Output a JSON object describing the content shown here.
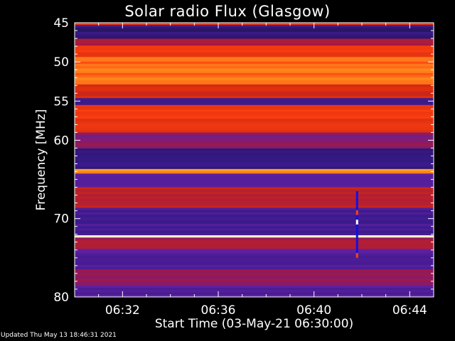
{
  "title": "Solar radio Flux (Glasgow)",
  "footer": "Updated Thu May 13 18:46:31 2021",
  "chart_data": {
    "type": "heatmap",
    "title": "Solar radio Flux (Glasgow)",
    "xlabel": "Start Time (03-May-21 06:30:00)",
    "ylabel": "Frequency [MHz]",
    "x_range_minutes": [
      0,
      15
    ],
    "y_range_mhz": [
      45,
      80
    ],
    "x_ticks": [
      {
        "label": "06:32",
        "minutes": 2
      },
      {
        "label": "06:36",
        "minutes": 6
      },
      {
        "label": "06:40",
        "minutes": 10
      },
      {
        "label": "06:44",
        "minutes": 14
      }
    ],
    "y_ticks": [
      45,
      50,
      55,
      60,
      70,
      80
    ],
    "colormap": [
      "#000000",
      "#10102a",
      "#3a1a8c",
      "#6020a0",
      "#a01848",
      "#d42a10",
      "#ff4010",
      "#ff9a20",
      "#ffe070",
      "#ffffff"
    ],
    "frequency_bands": [
      {
        "from": 45.0,
        "to": 45.4,
        "intensity": 0.65
      },
      {
        "from": 45.4,
        "to": 47.0,
        "intensity": 0.2
      },
      {
        "from": 47.0,
        "to": 48.0,
        "intensity": 0.45
      },
      {
        "from": 48.0,
        "to": 49.5,
        "intensity": 0.62
      },
      {
        "from": 49.5,
        "to": 53.0,
        "intensity": 0.72
      },
      {
        "from": 53.0,
        "to": 54.5,
        "intensity": 0.55
      },
      {
        "from": 54.5,
        "to": 55.5,
        "intensity": 0.25
      },
      {
        "from": 55.5,
        "to": 59.0,
        "intensity": 0.62
      },
      {
        "from": 59.0,
        "to": 61.0,
        "intensity": 0.4
      },
      {
        "from": 61.0,
        "to": 63.8,
        "intensity": 0.22
      },
      {
        "from": 63.8,
        "to": 64.3,
        "intensity": 0.75
      },
      {
        "from": 64.3,
        "to": 66.0,
        "intensity": 0.3
      },
      {
        "from": 66.0,
        "to": 68.5,
        "intensity": 0.5
      },
      {
        "from": 68.5,
        "to": 72.0,
        "intensity": 0.26
      },
      {
        "from": 72.0,
        "to": 72.5,
        "intensity": 0.95
      },
      {
        "from": 72.5,
        "to": 74.0,
        "intensity": 0.45
      },
      {
        "from": 74.0,
        "to": 76.5,
        "intensity": 0.3
      },
      {
        "from": 76.5,
        "to": 78.5,
        "intensity": 0.42
      },
      {
        "from": 78.5,
        "to": 80.0,
        "intensity": 0.3
      }
    ],
    "burst": {
      "minutes": 11.8,
      "from_mhz": 66.5,
      "to_mhz": 75.0
    }
  }
}
